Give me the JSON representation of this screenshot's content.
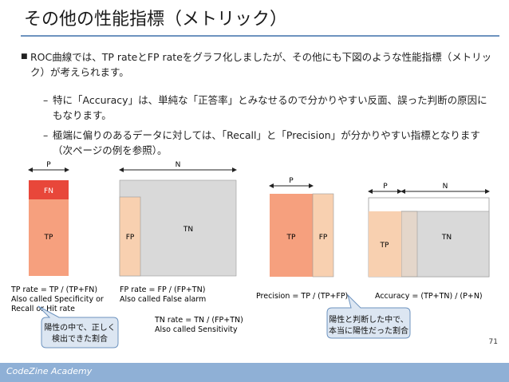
{
  "slide": {
    "title": "その他の性能指標（メトリック）",
    "bullet_main": "ROC曲線では、TP rateとFP rateをグラフ化しましたが、その他にも下図のような性能指標（メトリック）が考えられます。",
    "sub_bullets": [
      "特に「Accuracy」は、単純な「正答率」とみなせるので分かりやすい反面、誤った判断の原因にもなります。",
      "極端に偏りのあるデータに対しては、「Recall」と「Precision」が分かりやすい指標となります（次ページの例を参照）。"
    ],
    "page_number": "71",
    "footer": "CodeZine Academy"
  },
  "figure": {
    "p": "P",
    "n": "N",
    "fn": "FN",
    "tp": "TP",
    "fp": "FP",
    "tn": "TN",
    "formula1": [
      "TP rate = TP / (TP+FN)",
      "Also called Specificity or",
      "Recall or Hit rate"
    ],
    "formula2": [
      "FP rate = FP / (FP+TN)",
      "Also called False alarm"
    ],
    "formula3": [
      "TN rate = TN / (FP+TN)",
      "Also called Sensitivity"
    ],
    "formula4": "Precision = TP / (TP+FP)",
    "formula5": "Accuracy = (TP+TN) / (P+N)",
    "callout1": [
      "陽性の中で、正しく",
      "検出できた割合"
    ],
    "callout2": [
      "陽性と判断した中で、",
      "本当に陽性だった割合"
    ]
  },
  "colors": {
    "tp": "#f6a07e",
    "fn": "#e8473a",
    "fp": "#f8d0b0",
    "tn": "#d9d9d9",
    "callout_fill": "#dce6f2",
    "callout_stroke": "#6d93bf",
    "accent": "#6d93bf",
    "footer": "#8fb0d6"
  }
}
